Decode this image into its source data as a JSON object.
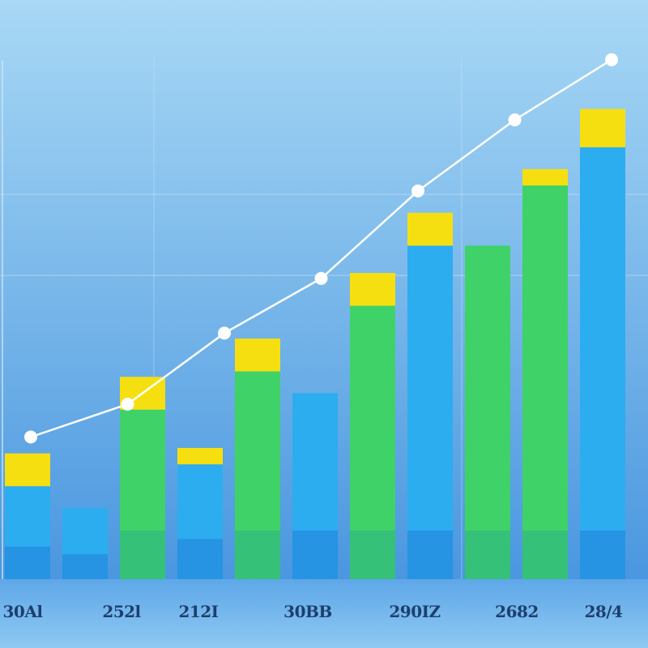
{
  "chart_data": {
    "type": "bar",
    "title": "",
    "xlabel": "",
    "ylabel": "",
    "ylim": [
      0,
      100
    ],
    "grid": true,
    "categories": [
      "30Al",
      "252l",
      "212I",
      "30BB",
      "290IZ",
      "2682",
      "28/4"
    ],
    "bars": [
      {
        "value": 17,
        "cap": 6,
        "color": "blue"
      },
      {
        "value": 13,
        "cap": 0,
        "color": "blue"
      },
      {
        "value": 31,
        "cap": 6,
        "color": "green"
      },
      {
        "value": 21,
        "cap": 3,
        "color": "blue"
      },
      {
        "value": 38,
        "cap": 6,
        "color": "green"
      },
      {
        "value": 34,
        "cap": 0,
        "color": "blue"
      },
      {
        "value": 50,
        "cap": 6,
        "color": "green"
      },
      {
        "value": 61,
        "cap": 6,
        "color": "blue"
      },
      {
        "value": 61,
        "cap": 0,
        "color": "green"
      },
      {
        "value": 72,
        "cap": 3,
        "color": "green"
      },
      {
        "value": 79,
        "cap": 7,
        "color": "blue"
      }
    ],
    "line": [
      26,
      32,
      45,
      55,
      71,
      84,
      95
    ],
    "colors": {
      "blue": "#2cadef",
      "blue_dark": "#1e73d4",
      "green": "#3fd268",
      "green_dark": "#2aae8a",
      "cap": "#f6df11",
      "line": "#ffffff",
      "grid": "#cfe6f7",
      "background_top": "#a8d8f5",
      "background_bottom": "#3f8fdd"
    }
  }
}
